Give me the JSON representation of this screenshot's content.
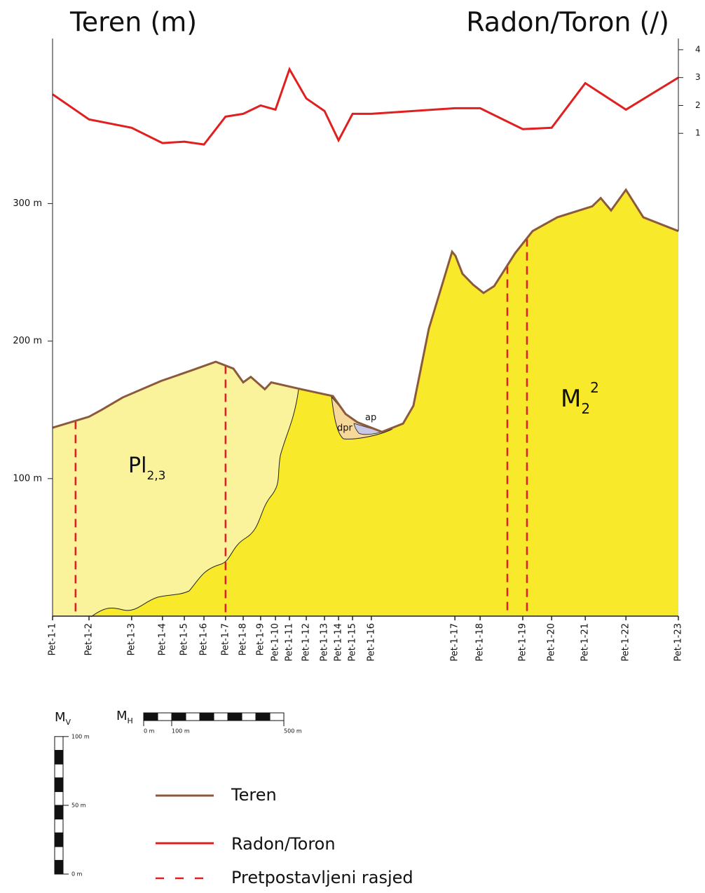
{
  "chart_data": {
    "type": "profile",
    "title_left": "Teren (m)",
    "title_right": "Radon/Toron (/)",
    "stations": [
      "Pet-1-1",
      "Pet-1-2",
      "Pet-1-3",
      "Pet-1-4",
      "Pet-1-5",
      "Pet-1-6",
      "Pet-1-7",
      "Pet-1-8",
      "Pet-1-9",
      "Pet-1-10",
      "Pet-1-11",
      "Pet-1-12",
      "Pet-1-13",
      "Pet-1-14",
      "Pet-1-15",
      "Pet-1-16",
      "Pet-1-17",
      "Pet-1-18",
      "Pet-1-19",
      "Pet-1-20",
      "Pet-1-21",
      "Pet-1-22",
      "Pet-1-23"
    ],
    "x": [
      0,
      130,
      282,
      392,
      470,
      540,
      617,
      680,
      742,
      795,
      845,
      905,
      970,
      1020,
      1070,
      1137,
      1435,
      1525,
      1677,
      1780,
      1900,
      2045,
      2232
    ],
    "xlim": [
      0,
      2232
    ],
    "ylim": [
      0,
      420
    ],
    "yticks": [
      {
        "value": 100,
        "label": "100 m"
      },
      {
        "value": 200,
        "label": "200 m"
      },
      {
        "value": 300,
        "label": "300 m"
      }
    ],
    "y2lim": [
      0,
      4.4
    ],
    "y2ticks": [
      1,
      2,
      3,
      4
    ],
    "series": [
      {
        "name": "Teren",
        "color": "#8b5a3c",
        "x": [
          0,
          130,
          175,
          250,
          387,
          500,
          582,
          645,
          680,
          707,
          757,
          780,
          887,
          1000,
          1045,
          1087,
          1175,
          1250,
          1287,
          1342,
          1425,
          1437,
          1462,
          1500,
          1537,
          1575,
          1650,
          1712,
          1800,
          1925,
          1955,
          1992,
          2045,
          2107,
          2232
        ],
        "values": [
          137,
          145,
          150,
          159,
          171,
          179,
          185,
          180,
          170,
          174,
          165,
          170,
          165,
          160,
          147,
          141,
          134,
          140,
          153,
          209,
          265,
          262,
          249,
          241,
          235,
          240,
          264,
          280,
          290,
          298,
          304,
          295,
          310,
          290,
          280
        ]
      },
      {
        "name": "Radon/Toron",
        "color": "#e02020",
        "axis": "y2",
        "values": [
          2.4,
          1.5,
          1.2,
          0.65,
          0.7,
          0.6,
          1.6,
          1.7,
          2.0,
          1.85,
          3.3,
          2.25,
          1.8,
          0.75,
          1.7,
          1.7,
          1.9,
          1.9,
          1.15,
          1.2,
          2.8,
          1.85,
          3.0
        ]
      }
    ],
    "faults": {
      "name": "Pretpostavljeni rasjed",
      "color": "#e02020",
      "x": [
        82,
        617,
        1622,
        1692
      ]
    },
    "units": [
      {
        "label": "Pl",
        "sub": "2,3"
      },
      {
        "label": "M",
        "sub": "2",
        "sup": "2"
      },
      {
        "label": "dpr"
      },
      {
        "label": "ap"
      }
    ],
    "scale_v": {
      "label": "M",
      "sub": "V",
      "ticks": [
        {
          "value": 0,
          "label": "0 m"
        },
        {
          "value": 50,
          "label": "50 m"
        },
        {
          "value": 100,
          "label": "100 m"
        }
      ]
    },
    "scale_h": {
      "label": "M",
      "sub": "H",
      "ticks": [
        {
          "value": 0,
          "label": "0 m"
        },
        {
          "value": 100,
          "label": "100 m"
        },
        {
          "value": 500,
          "label": "500 m"
        }
      ]
    }
  }
}
